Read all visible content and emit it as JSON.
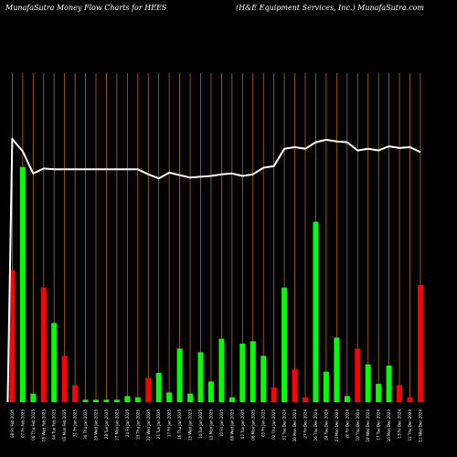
{
  "header": {
    "title_left": "MunafaSutra  Money Flow  Charts for HEES",
    "title_right": "(H&E Equipment Services,  Inc.) MunafaSutra.com"
  },
  "colors": {
    "background": "#000000",
    "grid": "#b06a10",
    "up_bar": "#00ff00",
    "down_bar": "#ff0000",
    "price_line": "#ffffff",
    "label": "#ffffff"
  },
  "chart_data": {
    "type": "bar",
    "title": "MunafaSutra  Money Flow  Charts for HEES",
    "subtitle": "(H&E Equipment Services,  Inc.) MunafaSutra.com",
    "categories": [
      "08 Fri Feb 2025",
      "07 Fri Feb 2025",
      "06 Thu Feb 2025",
      "05 Wed Feb 2025",
      "04 Tue Feb 2025",
      "03 Mon Feb 2025",
      "31 Fri Jan 2025",
      "30 Thu Jan 2025",
      "29 Wed Jan 2025",
      "28 Tue Jan 2025",
      "27 Mon Jan 2025",
      "24 Fri Jan 2025",
      "23 Thu Jan 2025",
      "22 Wed Jan 2025",
      "21 Tue Jan 2025",
      "17 Fri Jan 2025",
      "16 Thu Jan 2025",
      "15 Wed Jan 2025",
      "14 Tue Jan 2025",
      "13 Mon Jan 2025",
      "10 Fri Jan 2025",
      "08 Wed Jan 2025",
      "07 Tue Jan 2025",
      "06 Mon Jan 2025",
      "03 Fri Jan 2025",
      "02 Thu Jan 2025",
      "31 Tue Dec 2024",
      "30 Mon Dec 2024",
      "27 Fri Dec 2024",
      "26 Thu Dec 2024",
      "24 Tue Dec 2024",
      "23 Mon Dec 2024",
      "20 Fri Dec 2024",
      "19 Thu Dec 2024",
      "18 Wed Dec 2024",
      "17 Tue Dec 2024",
      "16 Mon Dec 2024",
      "13 Fri Dec 2024",
      "12 Thu Dec 2024",
      "11 Wed Dec 2024"
    ],
    "values": [
      108,
      193,
      7,
      94,
      65,
      38,
      14,
      2,
      2,
      2,
      2,
      5,
      4,
      20,
      24,
      8,
      44,
      7,
      41,
      17,
      52,
      4,
      48,
      50,
      38,
      12,
      94,
      27,
      4,
      148,
      25,
      53,
      5,
      44,
      31,
      15,
      30,
      14,
      4,
      96
    ],
    "directions": [
      "down",
      "up",
      "up",
      "down",
      "up",
      "down",
      "down",
      "up",
      "up",
      "up",
      "up",
      "up",
      "up",
      "down",
      "up",
      "up",
      "up",
      "up",
      "up",
      "up",
      "up",
      "up",
      "up",
      "up",
      "up",
      "down",
      "up",
      "down",
      "down",
      "up",
      "up",
      "up",
      "up",
      "down",
      "up",
      "up",
      "up",
      "down",
      "down",
      "down"
    ],
    "price": [
      60,
      58.5,
      55.8,
      56.4,
      56.3,
      56.3,
      56.3,
      56.3,
      56.3,
      56.3,
      56.3,
      56.3,
      56.3,
      55.7,
      55.2,
      55.9,
      55.6,
      55.3,
      55.4,
      55.5,
      55.7,
      55.8,
      55.5,
      55.7,
      56.5,
      56.7,
      58.8,
      59.0,
      58.8,
      59.6,
      59.9,
      59.7,
      59.6,
      58.6,
      58.8,
      58.6,
      59.1,
      58.9,
      59.0,
      58.4
    ],
    "ylim": [
      0,
      270
    ],
    "price_ylim": [
      28,
      68
    ],
    "grid": true,
    "xlabel": "",
    "ylabel": ""
  }
}
